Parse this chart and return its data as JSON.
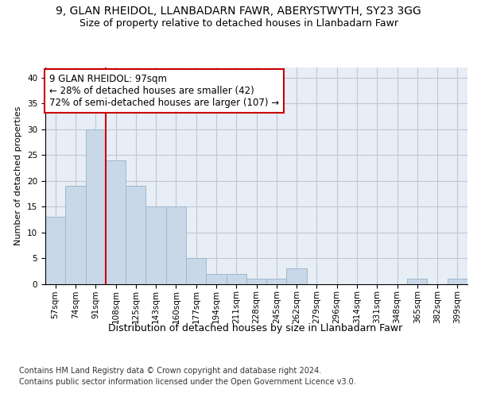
{
  "title": "9, GLAN RHEIDOL, LLANBADARN FAWR, ABERYSTWYTH, SY23 3GG",
  "subtitle": "Size of property relative to detached houses in Llanbadarn Fawr",
  "xlabel": "Distribution of detached houses by size in Llanbadarn Fawr",
  "ylabel": "Number of detached properties",
  "categories": [
    "57sqm",
    "74sqm",
    "91sqm",
    "108sqm",
    "125sqm",
    "143sqm",
    "160sqm",
    "177sqm",
    "194sqm",
    "211sqm",
    "228sqm",
    "245sqm",
    "262sqm",
    "279sqm",
    "296sqm",
    "314sqm",
    "331sqm",
    "348sqm",
    "365sqm",
    "382sqm",
    "399sqm"
  ],
  "values": [
    13,
    19,
    30,
    24,
    19,
    15,
    15,
    5,
    2,
    2,
    1,
    1,
    3,
    0,
    0,
    0,
    0,
    0,
    1,
    0,
    1
  ],
  "bar_color": "#c8d8e8",
  "bar_edge_color": "#a0b8cc",
  "vline_x_index": 2.5,
  "vline_color": "#cc0000",
  "annotation_text": "9 GLAN RHEIDOL: 97sqm\n← 28% of detached houses are smaller (42)\n72% of semi-detached houses are larger (107) →",
  "annotation_box_color": "#ffffff",
  "annotation_box_edge": "#cc0000",
  "ylim": [
    0,
    42
  ],
  "yticks": [
    0,
    5,
    10,
    15,
    20,
    25,
    30,
    35,
    40
  ],
  "grid_color": "#c0c8d8",
  "background_color": "#e8eef5",
  "footer_line1": "Contains HM Land Registry data © Crown copyright and database right 2024.",
  "footer_line2": "Contains public sector information licensed under the Open Government Licence v3.0.",
  "title_fontsize": 10,
  "subtitle_fontsize": 9,
  "xlabel_fontsize": 9,
  "ylabel_fontsize": 8,
  "tick_fontsize": 7.5,
  "annotation_fontsize": 8.5,
  "footer_fontsize": 7
}
